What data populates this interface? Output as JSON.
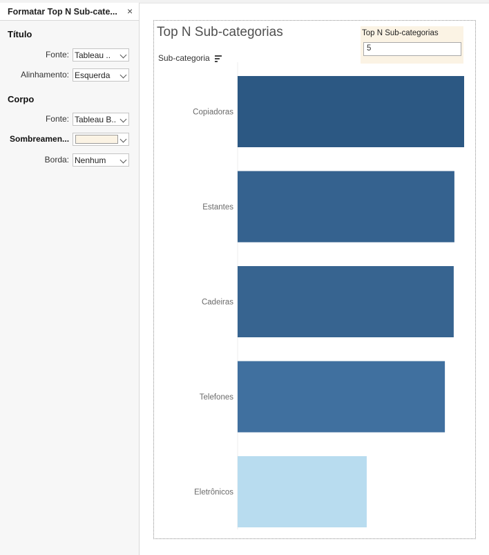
{
  "format_panel": {
    "title": "Formatar Top N Sub-cate...",
    "close_glyph": "×",
    "title_section": {
      "heading": "Título",
      "font_label": "Fonte:",
      "font_value": "Tableau ..",
      "align_label": "Alinhamento:",
      "align_value": "Esquerda"
    },
    "body_section": {
      "heading": "Corpo",
      "font_label": "Fonte:",
      "font_value": "Tableau B..",
      "shading_label": "Sombreamen...",
      "shading_color": "#fbf3e4",
      "border_label": "Borda:",
      "border_value": "Nenhum"
    }
  },
  "sheet": {
    "title": "Top N Sub-categorias",
    "axis_header": "Sub-categoria",
    "sort_icon": "sort-descending-icon"
  },
  "parameter": {
    "title": "Top N Sub-categorias",
    "value": "5",
    "background": "#fbf3e4"
  },
  "chart_data": {
    "type": "bar",
    "orientation": "horizontal",
    "categories": [
      "Copiadoras",
      "Estantes",
      "Cadeiras",
      "Telefones",
      "Eletrônicos"
    ],
    "values": [
      100,
      95.7,
      95.4,
      91.5,
      57.0
    ],
    "colors": [
      "#2c5883",
      "#35628f",
      "#376490",
      "#40709f",
      "#b8dcef"
    ],
    "ylabel": "Sub-categoria",
    "value_axis_shown": false
  }
}
